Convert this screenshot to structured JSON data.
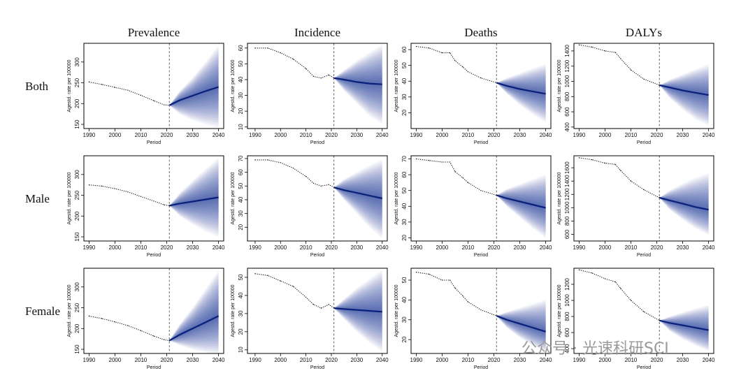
{
  "figure": {
    "column_titles": [
      "Prevalence",
      "Incidence",
      "Deaths",
      "DALYs"
    ],
    "row_labels": [
      "Both",
      "Male",
      "Female"
    ],
    "watermark": "公众号 · 光速科研SCI",
    "colors": {
      "observed": "#111111",
      "projection_center": "#08207a",
      "fan": "#1f3a9a",
      "border": "#000000",
      "vline": "#555555"
    }
  },
  "chart_data": [
    {
      "type": "line",
      "row": "Both",
      "measure": "Prevalence",
      "xlabel": "Period",
      "ylabel": "Agestd. rate per 100000",
      "xlim": [
        1988,
        2042
      ],
      "xticks": [
        1990,
        2000,
        2010,
        2020,
        2030,
        2040
      ],
      "ylim": [
        140,
        345
      ],
      "yticks": [
        150,
        200,
        250,
        300
      ],
      "observed_years": [
        1990,
        1995,
        2000,
        2005,
        2010,
        2015,
        2019,
        2021
      ],
      "observed_values": [
        252,
        246,
        239,
        232,
        220,
        207,
        197,
        196
      ],
      "projection": {
        "x": [
          2021,
          2025,
          2030,
          2035,
          2040
        ],
        "center": [
          196,
          208,
          219,
          230,
          240
        ],
        "lower": [
          196,
          175,
          160,
          150,
          143
        ],
        "upper": [
          196,
          230,
          262,
          300,
          340
        ]
      },
      "projection_start": 2021
    },
    {
      "type": "line",
      "row": "Both",
      "measure": "Incidence",
      "xlabel": "Period",
      "ylabel": "Agestd. rate per 100000",
      "xlim": [
        1987,
        2042
      ],
      "xticks": [
        1990,
        2000,
        2010,
        2020,
        2030,
        2040
      ],
      "ylim": [
        9,
        63
      ],
      "yticks": [
        10,
        20,
        30,
        40,
        50,
        60
      ],
      "observed_years": [
        1990,
        1995,
        2000,
        2005,
        2010,
        2013,
        2016,
        2019,
        2021
      ],
      "observed_values": [
        60,
        60,
        57,
        53,
        47,
        42,
        41,
        43,
        41
      ],
      "projection": {
        "x": [
          2021,
          2025,
          2030,
          2035,
          2040
        ],
        "center": [
          41,
          40,
          38.5,
          37.5,
          37
        ],
        "lower": [
          41,
          33,
          25,
          17,
          12
        ],
        "upper": [
          41,
          46,
          52,
          57,
          62
        ]
      },
      "projection_start": 2021
    },
    {
      "type": "line",
      "row": "Both",
      "measure": "Deaths",
      "xlabel": "Period",
      "ylabel": "Agestd. rate per 100000",
      "xlim": [
        1988,
        2042
      ],
      "xticks": [
        1990,
        2000,
        2010,
        2020,
        2030,
        2040
      ],
      "ylim": [
        10,
        64
      ],
      "yticks": [
        20,
        30,
        40,
        50,
        60
      ],
      "observed_years": [
        1990,
        1995,
        2000,
        2003,
        2005,
        2008,
        2010,
        2015,
        2021
      ],
      "observed_values": [
        62,
        61,
        58,
        58,
        53,
        49,
        46,
        42,
        39
      ],
      "projection": {
        "x": [
          2021,
          2025,
          2030,
          2035,
          2040
        ],
        "center": [
          39,
          37,
          35,
          33.5,
          32
        ],
        "lower": [
          39,
          32,
          25,
          19,
          14
        ],
        "upper": [
          39,
          42,
          45,
          48,
          51
        ]
      },
      "projection_start": 2021
    },
    {
      "type": "line",
      "row": "Both",
      "measure": "DALYs",
      "xlabel": "Period",
      "ylabel": "Agestd. rate per 100000",
      "xlim": [
        1988,
        2042
      ],
      "xticks": [
        1990,
        2000,
        2010,
        2020,
        2030,
        2040
      ],
      "ylim": [
        380,
        1500
      ],
      "yticks": [
        400,
        600,
        800,
        1000,
        1200,
        1400
      ],
      "observed_years": [
        1990,
        1995,
        2000,
        2004,
        2006,
        2010,
        2015,
        2021
      ],
      "observed_values": [
        1480,
        1450,
        1400,
        1380,
        1300,
        1150,
        1030,
        950
      ],
      "projection": {
        "x": [
          2021,
          2025,
          2030,
          2035,
          2040
        ],
        "center": [
          950,
          920,
          880,
          850,
          820
        ],
        "lower": [
          950,
          780,
          630,
          500,
          420
        ],
        "upper": [
          950,
          1020,
          1090,
          1160,
          1220
        ]
      },
      "projection_start": 2021
    },
    {
      "type": "line",
      "row": "Male",
      "measure": "Prevalence",
      "xlabel": "Period",
      "ylabel": "Agestd. rate per 100000",
      "xlim": [
        1988,
        2042
      ],
      "xticks": [
        1990,
        2000,
        2010,
        2020,
        2030,
        2040
      ],
      "ylim": [
        140,
        345
      ],
      "yticks": [
        150,
        200,
        250,
        300
      ],
      "observed_years": [
        1990,
        1995,
        2000,
        2005,
        2010,
        2015,
        2019,
        2021
      ],
      "observed_values": [
        275,
        272,
        266,
        258,
        247,
        236,
        227,
        225
      ],
      "projection": {
        "x": [
          2021,
          2025,
          2030,
          2035,
          2040
        ],
        "center": [
          225,
          230,
          235,
          240,
          245
        ],
        "lower": [
          225,
          200,
          180,
          163,
          150
        ],
        "upper": [
          225,
          255,
          285,
          313,
          340
        ]
      },
      "projection_start": 2021
    },
    {
      "type": "line",
      "row": "Male",
      "measure": "Incidence",
      "xlabel": "Period",
      "ylabel": "Agestd. rate per 100000",
      "xlim": [
        1987,
        2042
      ],
      "xticks": [
        1990,
        2000,
        2010,
        2020,
        2030,
        2040
      ],
      "ylim": [
        10,
        72
      ],
      "yticks": [
        20,
        30,
        40,
        50,
        60,
        70
      ],
      "observed_years": [
        1990,
        1995,
        2000,
        2005,
        2010,
        2013,
        2016,
        2019,
        2021
      ],
      "observed_values": [
        69,
        69,
        67,
        63,
        57,
        52,
        50,
        51,
        49
      ],
      "projection": {
        "x": [
          2021,
          2025,
          2030,
          2035,
          2040
        ],
        "center": [
          49,
          47,
          45,
          43,
          41
        ],
        "lower": [
          49,
          40,
          30,
          20,
          12
        ],
        "upper": [
          49,
          55,
          60,
          65,
          69
        ]
      },
      "projection_start": 2021
    },
    {
      "type": "line",
      "row": "Male",
      "measure": "Deaths",
      "xlabel": "Period",
      "ylabel": "Agestd. rate per 100000",
      "xlim": [
        1988,
        2042
      ],
      "xticks": [
        1990,
        2000,
        2010,
        2020,
        2030,
        2040
      ],
      "ylim": [
        18,
        72
      ],
      "yticks": [
        20,
        30,
        40,
        50,
        60,
        70
      ],
      "observed_years": [
        1990,
        1995,
        2000,
        2003,
        2005,
        2008,
        2010,
        2015,
        2021
      ],
      "observed_values": [
        70,
        69,
        68,
        68,
        62,
        58,
        55,
        50,
        47
      ],
      "projection": {
        "x": [
          2021,
          2025,
          2030,
          2035,
          2040
        ],
        "center": [
          47,
          45,
          43,
          41,
          39
        ],
        "lower": [
          47,
          40,
          33,
          26,
          20
        ],
        "upper": [
          47,
          51,
          54,
          57,
          60
        ]
      },
      "projection_start": 2021
    },
    {
      "type": "line",
      "row": "Male",
      "measure": "DALYs",
      "xlabel": "Period",
      "ylabel": "Agestd. rate per 100000",
      "xlim": [
        1988,
        2042
      ],
      "xticks": [
        1990,
        2000,
        2010,
        2020,
        2030,
        2040
      ],
      "ylim": [
        500,
        1780
      ],
      "yticks": [
        600,
        800,
        1000,
        1200,
        1400,
        1600
      ],
      "observed_years": [
        1990,
        1995,
        2000,
        2004,
        2006,
        2010,
        2015,
        2021
      ],
      "observed_values": [
        1750,
        1720,
        1670,
        1650,
        1560,
        1400,
        1270,
        1150
      ],
      "projection": {
        "x": [
          2021,
          2025,
          2030,
          2035,
          2040
        ],
        "center": [
          1150,
          1110,
          1060,
          1010,
          970
        ],
        "lower": [
          1150,
          970,
          820,
          690,
          590
        ],
        "upper": [
          1150,
          1260,
          1360,
          1450,
          1520
        ]
      },
      "projection_start": 2021
    },
    {
      "type": "line",
      "row": "Female",
      "measure": "Prevalence",
      "xlabel": "Period",
      "ylabel": "Agestd. rate per 100000",
      "xlim": [
        1988,
        2042
      ],
      "xticks": [
        1990,
        2000,
        2010,
        2020,
        2030,
        2040
      ],
      "ylim": [
        140,
        345
      ],
      "yticks": [
        150,
        200,
        250,
        300
      ],
      "observed_years": [
        1990,
        1995,
        2000,
        2005,
        2010,
        2015,
        2019,
        2021
      ],
      "observed_values": [
        230,
        224,
        216,
        207,
        195,
        182,
        173,
        171
      ],
      "projection": {
        "x": [
          2021,
          2025,
          2030,
          2035,
          2040
        ],
        "center": [
          171,
          185,
          200,
          215,
          230
        ],
        "lower": [
          171,
          160,
          150,
          143,
          138
        ],
        "upper": [
          171,
          210,
          250,
          295,
          340
        ]
      },
      "projection_start": 2021
    },
    {
      "type": "line",
      "row": "Female",
      "measure": "Incidence",
      "xlabel": "Period",
      "ylabel": "Agestd. rate per 100000",
      "xlim": [
        1987,
        2042
      ],
      "xticks": [
        1990,
        2000,
        2010,
        2020,
        2030,
        2040
      ],
      "ylim": [
        8,
        55
      ],
      "yticks": [
        10,
        20,
        30,
        40,
        50
      ],
      "observed_years": [
        1990,
        1995,
        2000,
        2005,
        2010,
        2013,
        2016,
        2019,
        2021
      ],
      "observed_values": [
        52,
        51,
        48,
        45,
        39,
        35,
        33,
        35,
        33
      ],
      "projection": {
        "x": [
          2021,
          2025,
          2030,
          2035,
          2040
        ],
        "center": [
          33,
          32.5,
          32,
          31.5,
          31
        ],
        "lower": [
          33,
          27,
          20,
          14,
          9
        ],
        "upper": [
          33,
          38,
          44,
          49,
          54
        ]
      },
      "projection_start": 2021
    },
    {
      "type": "line",
      "row": "Female",
      "measure": "Deaths",
      "xlabel": "Period",
      "ylabel": "Agestd. rate per 100000",
      "xlim": [
        1988,
        2042
      ],
      "xticks": [
        1990,
        2000,
        2010,
        2020,
        2030,
        2040
      ],
      "ylim": [
        13,
        56
      ],
      "yticks": [
        20,
        30,
        40,
        50
      ],
      "observed_years": [
        1990,
        1995,
        2000,
        2003,
        2005,
        2008,
        2010,
        2015,
        2021
      ],
      "observed_values": [
        54,
        53,
        50,
        50,
        46,
        42,
        39,
        35,
        32
      ],
      "projection": {
        "x": [
          2021,
          2025,
          2030,
          2035,
          2040
        ],
        "center": [
          32,
          30,
          28,
          26,
          24
        ],
        "lower": [
          32,
          26,
          21,
          17,
          14
        ],
        "upper": [
          32,
          34,
          36,
          38,
          40
        ]
      },
      "projection_start": 2021
    },
    {
      "type": "line",
      "row": "Female",
      "measure": "DALYs",
      "xlabel": "Period",
      "ylabel": "Agestd. rate per 100000",
      "xlim": [
        1988,
        2042
      ],
      "xticks": [
        1990,
        2000,
        2010,
        2020,
        2030,
        2040
      ],
      "ylim": [
        340,
        1400
      ],
      "yticks": [
        400,
        600,
        800,
        1000,
        1200
      ],
      "observed_years": [
        1990,
        1995,
        2000,
        2004,
        2006,
        2010,
        2015,
        2021
      ],
      "observed_values": [
        1380,
        1340,
        1270,
        1230,
        1150,
        1000,
        860,
        750
      ],
      "projection": {
        "x": [
          2021,
          2025,
          2030,
          2035,
          2040
        ],
        "center": [
          750,
          720,
          690,
          660,
          630
        ],
        "lower": [
          750,
          620,
          520,
          440,
          370
        ],
        "upper": [
          750,
          800,
          850,
          900,
          940
        ]
      },
      "projection_start": 2021
    }
  ]
}
